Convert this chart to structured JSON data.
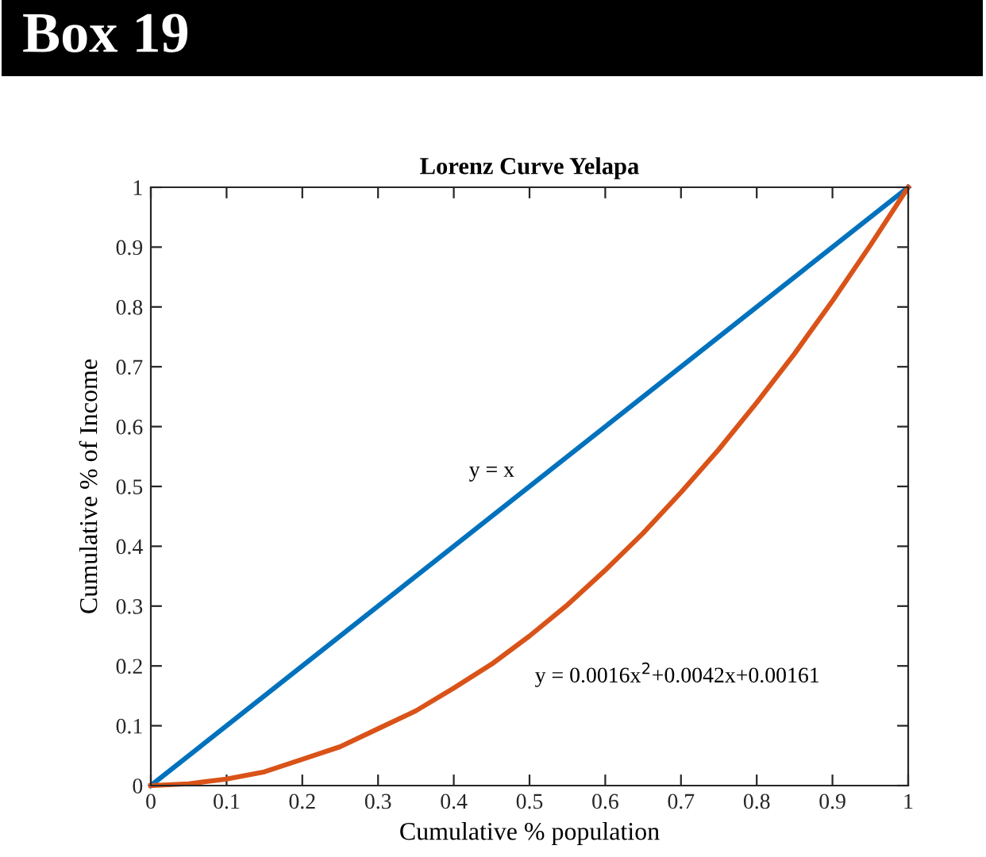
{
  "chart_data": {
    "type": "line",
    "title": "Lorenz Curve Yelapa",
    "xlabel": "Cumulative % population",
    "ylabel": "Cumulative % of Income",
    "series": [
      {
        "color": "#0072bd",
        "x": [
          0,
          1
        ],
        "values": [
          0,
          1
        ]
      },
      {
        "color": "#d95319",
        "x": [
          0,
          0.05,
          0.1,
          0.15,
          0.2,
          0.25,
          0.3,
          0.35,
          0.4,
          0.45,
          0.5,
          0.55,
          0.6,
          0.65,
          0.7,
          0.75,
          0.8,
          0.85,
          0.9,
          0.95,
          1
        ],
        "values": [
          0,
          0.003,
          0.011,
          0.023,
          0.044,
          0.065,
          0.095,
          0.125,
          0.163,
          0.203,
          0.25,
          0.302,
          0.36,
          0.422,
          0.49,
          0.562,
          0.64,
          0.722,
          0.81,
          0.903,
          1
        ]
      }
    ],
    "annotations": [
      "Box 19",
      "y = x",
      "y = 0.0016x$^{2}$+0.0042x+0.00161"
    ],
    "xlim": [
      0,
      1
    ],
    "ylim": [
      0,
      1
    ],
    "xticks": [
      0,
      0.1,
      0.2,
      0.3,
      0.4,
      0.5,
      0.6,
      0.7,
      0.8,
      0.9,
      1
    ],
    "yticks": [
      0,
      0.1,
      0.2,
      0.3,
      0.4,
      0.5,
      0.6,
      0.7,
      0.8,
      0.9,
      1
    ],
    "line_style": "solid"
  }
}
